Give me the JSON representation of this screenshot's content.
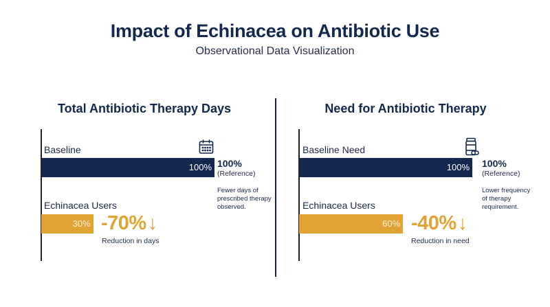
{
  "header": {
    "title": "Impact of Echinacea on Antibiotic Use",
    "subtitle": "Observational Data Visualization"
  },
  "panels": [
    {
      "title": "Total Antibiotic Therapy Days",
      "baseline_label": "Baseline",
      "baseline_value_text": "100%",
      "reference_pct": "100%",
      "reference_note": "(Reference)",
      "side_note": "Fewer days of prescribed therapy observed.",
      "treatment_label": "Echinacea Users",
      "treatment_value_text": "30%",
      "change_text": "-70%",
      "change_arrow": "↓",
      "change_caption": "Reduction in days",
      "icon": "calendar-icon"
    },
    {
      "title": "Need for Antibiotic Therapy",
      "baseline_label": "Baseline Need",
      "baseline_value_text": "100%",
      "reference_pct": "100%",
      "reference_note": "(Reference)",
      "side_note": "Lower frequency of therapy requirement.",
      "treatment_label": "Echinacea Users",
      "treatment_value_text": "60%",
      "change_text": "-40%",
      "change_arrow": "↓",
      "change_caption": "Reduction in need",
      "icon": "pill-bottle-icon"
    }
  ],
  "colors": {
    "baseline": "#14284f",
    "treatment": "#e1a334",
    "text": "#13284f"
  },
  "chart_data": [
    {
      "type": "bar",
      "title": "Total Antibiotic Therapy Days",
      "orientation": "horizontal",
      "categories": [
        "Baseline",
        "Echinacea Users"
      ],
      "values": [
        100,
        30
      ],
      "unit": "%",
      "xlim": [
        0,
        100
      ],
      "grid": false
    },
    {
      "type": "bar",
      "title": "Need for Antibiotic Therapy",
      "orientation": "horizontal",
      "categories": [
        "Baseline Need",
        "Echinacea Users"
      ],
      "values": [
        100,
        60
      ],
      "unit": "%",
      "xlim": [
        0,
        100
      ],
      "grid": false
    }
  ]
}
